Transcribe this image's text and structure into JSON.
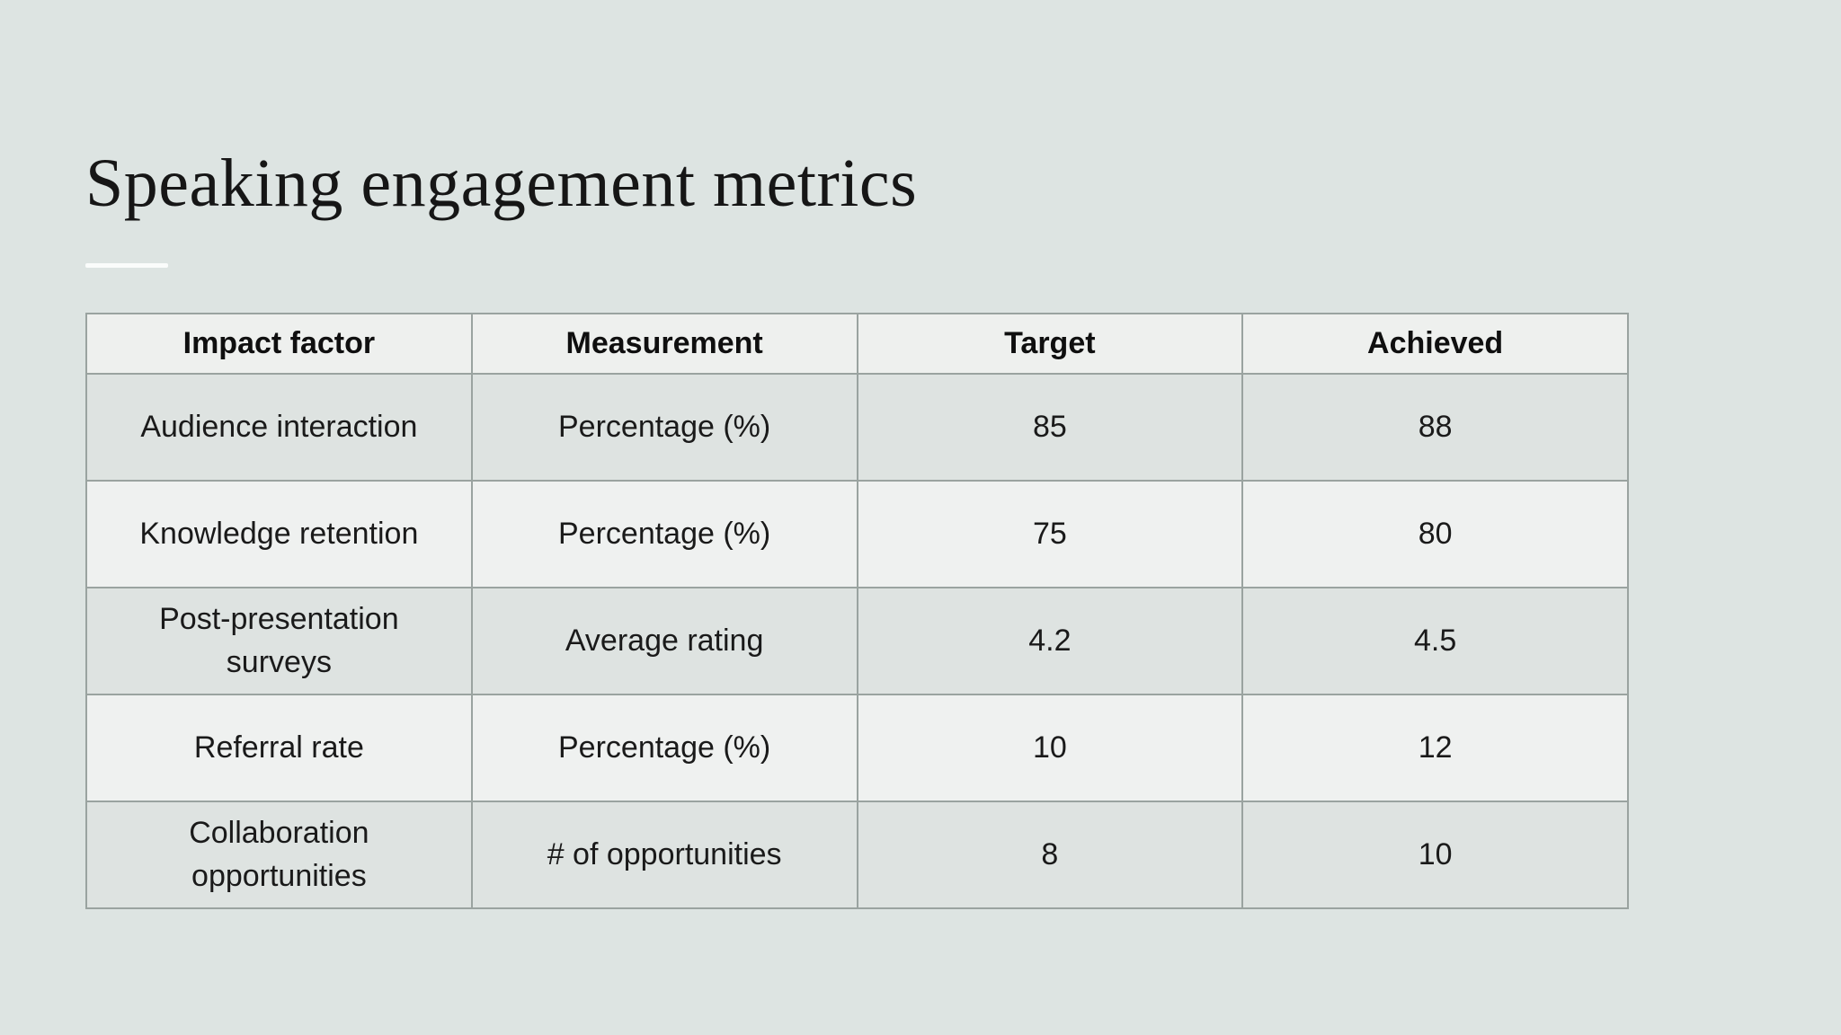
{
  "slide": {
    "title": "Speaking engagement metrics",
    "background_color": "#dde4e2",
    "divider_color": "#fafcfb",
    "title_color": "#161616"
  },
  "table": {
    "headers": [
      "Impact factor",
      "Measurement",
      "Target",
      "Achieved"
    ],
    "rows": [
      [
        "Audience interaction",
        "Percentage (%)",
        "85",
        "88"
      ],
      [
        "Knowledge retention",
        "Percentage (%)",
        "75",
        "80"
      ],
      [
        "Post-presentation surveys",
        "Average rating",
        "4.2",
        "4.5"
      ],
      [
        "Referral rate",
        "Percentage (%)",
        "10",
        "12"
      ],
      [
        "Collaboration opportunities",
        "# of opportunities",
        "8",
        "10"
      ]
    ],
    "colors": {
      "header_bg": "#eef0ee",
      "row_dark_bg": "#dee3e1",
      "row_light_bg": "#eff1f0",
      "border": "#9aa3a0",
      "outer_border": "#8f9995",
      "text": "#1a1a1a"
    }
  },
  "chart_data": {
    "type": "table",
    "title": "Speaking engagement metrics",
    "columns": [
      "Impact factor",
      "Measurement",
      "Target",
      "Achieved"
    ],
    "rows": [
      {
        "impact_factor": "Audience interaction",
        "measurement": "Percentage (%)",
        "target": 85,
        "achieved": 88
      },
      {
        "impact_factor": "Knowledge retention",
        "measurement": "Percentage (%)",
        "target": 75,
        "achieved": 80
      },
      {
        "impact_factor": "Post-presentation surveys",
        "measurement": "Average rating",
        "target": 4.2,
        "achieved": 4.5
      },
      {
        "impact_factor": "Referral rate",
        "measurement": "Percentage (%)",
        "target": 10,
        "achieved": 12
      },
      {
        "impact_factor": "Collaboration opportunities",
        "measurement": "# of opportunities",
        "target": 8,
        "achieved": 10
      }
    ]
  }
}
